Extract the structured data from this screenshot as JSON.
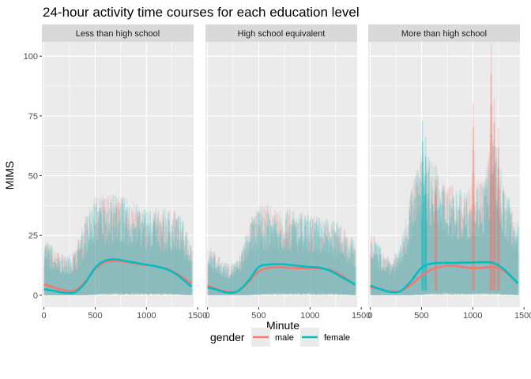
{
  "chart_data": {
    "type": "line",
    "title": "24-hour activity time courses for each education level",
    "xlabel": "Minute",
    "ylabel": "MIMS",
    "xlim": [
      -20,
      1460
    ],
    "ylim": [
      -5,
      106
    ],
    "x_ticks": [
      0,
      500,
      1000,
      1500
    ],
    "x_tick_labels": [
      "0",
      "500",
      "1000",
      "1500"
    ],
    "y_ticks": [
      0,
      25,
      50,
      75,
      100
    ],
    "y_tick_labels": [
      "0",
      "25",
      "50",
      "75",
      "100"
    ],
    "grid": true,
    "legend": {
      "title": "gender",
      "position": "bottom",
      "entries": [
        {
          "name": "male",
          "color": "#F8766D"
        },
        {
          "name": "female",
          "color": "#00BFC4"
        }
      ]
    },
    "panels": [
      {
        "label": "Less than high school",
        "x": [
          0,
          100,
          200,
          300,
          400,
          500,
          600,
          700,
          800,
          900,
          1000,
          1100,
          1200,
          1300,
          1440
        ],
        "series": [
          {
            "name": "male",
            "values": [
              4.5,
              3.2,
              2.0,
              2.0,
              5.5,
              11.0,
              13.8,
              14.3,
              13.8,
              13.2,
              12.6,
              12.0,
              11.0,
              9.0,
              4.8
            ]
          },
          {
            "name": "female",
            "values": [
              2.5,
              1.8,
              1.0,
              1.2,
              5.0,
              11.5,
              14.5,
              15.0,
              14.3,
              13.5,
              12.8,
              12.0,
              10.8,
              8.5,
              3.5
            ]
          }
        ],
        "band_upper": [
          22,
          18,
          15,
          17,
          30,
          38,
          39,
          39,
          37,
          35,
          34,
          33,
          33,
          32,
          22
        ],
        "band_lower": [
          0,
          0,
          0,
          0,
          0,
          0.5,
          1,
          1,
          1,
          1,
          1,
          1,
          1,
          0.5,
          0
        ]
      },
      {
        "label": "High school equivalent",
        "x": [
          0,
          100,
          200,
          300,
          400,
          500,
          600,
          700,
          800,
          900,
          1000,
          1100,
          1200,
          1300,
          1440
        ],
        "series": [
          {
            "name": "male",
            "values": [
              4.0,
              2.5,
              1.3,
              1.8,
              5.5,
              10.0,
              11.5,
              11.8,
              11.5,
              11.3,
              11.3,
              11.2,
              10.5,
              8.5,
              4.2
            ]
          },
          {
            "name": "female",
            "values": [
              3.2,
              2.2,
              1.0,
              1.8,
              6.0,
              11.8,
              12.8,
              13.0,
              12.7,
              12.2,
              11.8,
              11.5,
              10.2,
              7.8,
              4.5
            ]
          }
        ],
        "band_upper": [
          20,
          15,
          12,
          14,
          28,
          34,
          35,
          34,
          33,
          32,
          31,
          30,
          29,
          28,
          20
        ],
        "band_lower": [
          0,
          0,
          0,
          0,
          0,
          0.5,
          1,
          1,
          1,
          1,
          1,
          1,
          1,
          0.5,
          0
        ]
      },
      {
        "label": "More than high school",
        "x": [
          0,
          100,
          200,
          300,
          400,
          500,
          600,
          700,
          800,
          900,
          1000,
          1100,
          1200,
          1300,
          1440
        ],
        "series": [
          {
            "name": "male",
            "values": [
              3.5,
              2.5,
              1.5,
              1.8,
              4.5,
              8.0,
              10.8,
              12.0,
              12.3,
              11.8,
              11.3,
              11.5,
              11.8,
              10.3,
              5.0
            ]
          },
          {
            "name": "female",
            "values": [
              4.0,
              2.5,
              1.3,
              1.8,
              6.0,
              11.5,
              13.2,
              13.5,
              13.5,
              13.6,
              13.7,
              13.8,
              13.5,
              11.0,
              5.0
            ]
          }
        ],
        "band_upper": [
          26,
          18,
          14,
          20,
          42,
          56,
          52,
          44,
          42,
          40,
          42,
          46,
          62,
          42,
          28
        ],
        "band_lower": [
          0,
          0,
          0,
          0,
          0,
          0.5,
          1,
          1,
          1,
          1,
          1,
          1,
          1,
          0.5,
          0
        ],
        "spikes": [
          {
            "series": "female",
            "x": 510,
            "top": 73
          },
          {
            "series": "female",
            "x": 540,
            "top": 66
          },
          {
            "series": "male",
            "x": 640,
            "top": 55
          },
          {
            "series": "male",
            "x": 1005,
            "top": 80
          },
          {
            "series": "male",
            "x": 1180,
            "top": 105
          },
          {
            "series": "male",
            "x": 1210,
            "top": 82
          },
          {
            "series": "male",
            "x": 1250,
            "top": 70
          }
        ]
      }
    ]
  }
}
